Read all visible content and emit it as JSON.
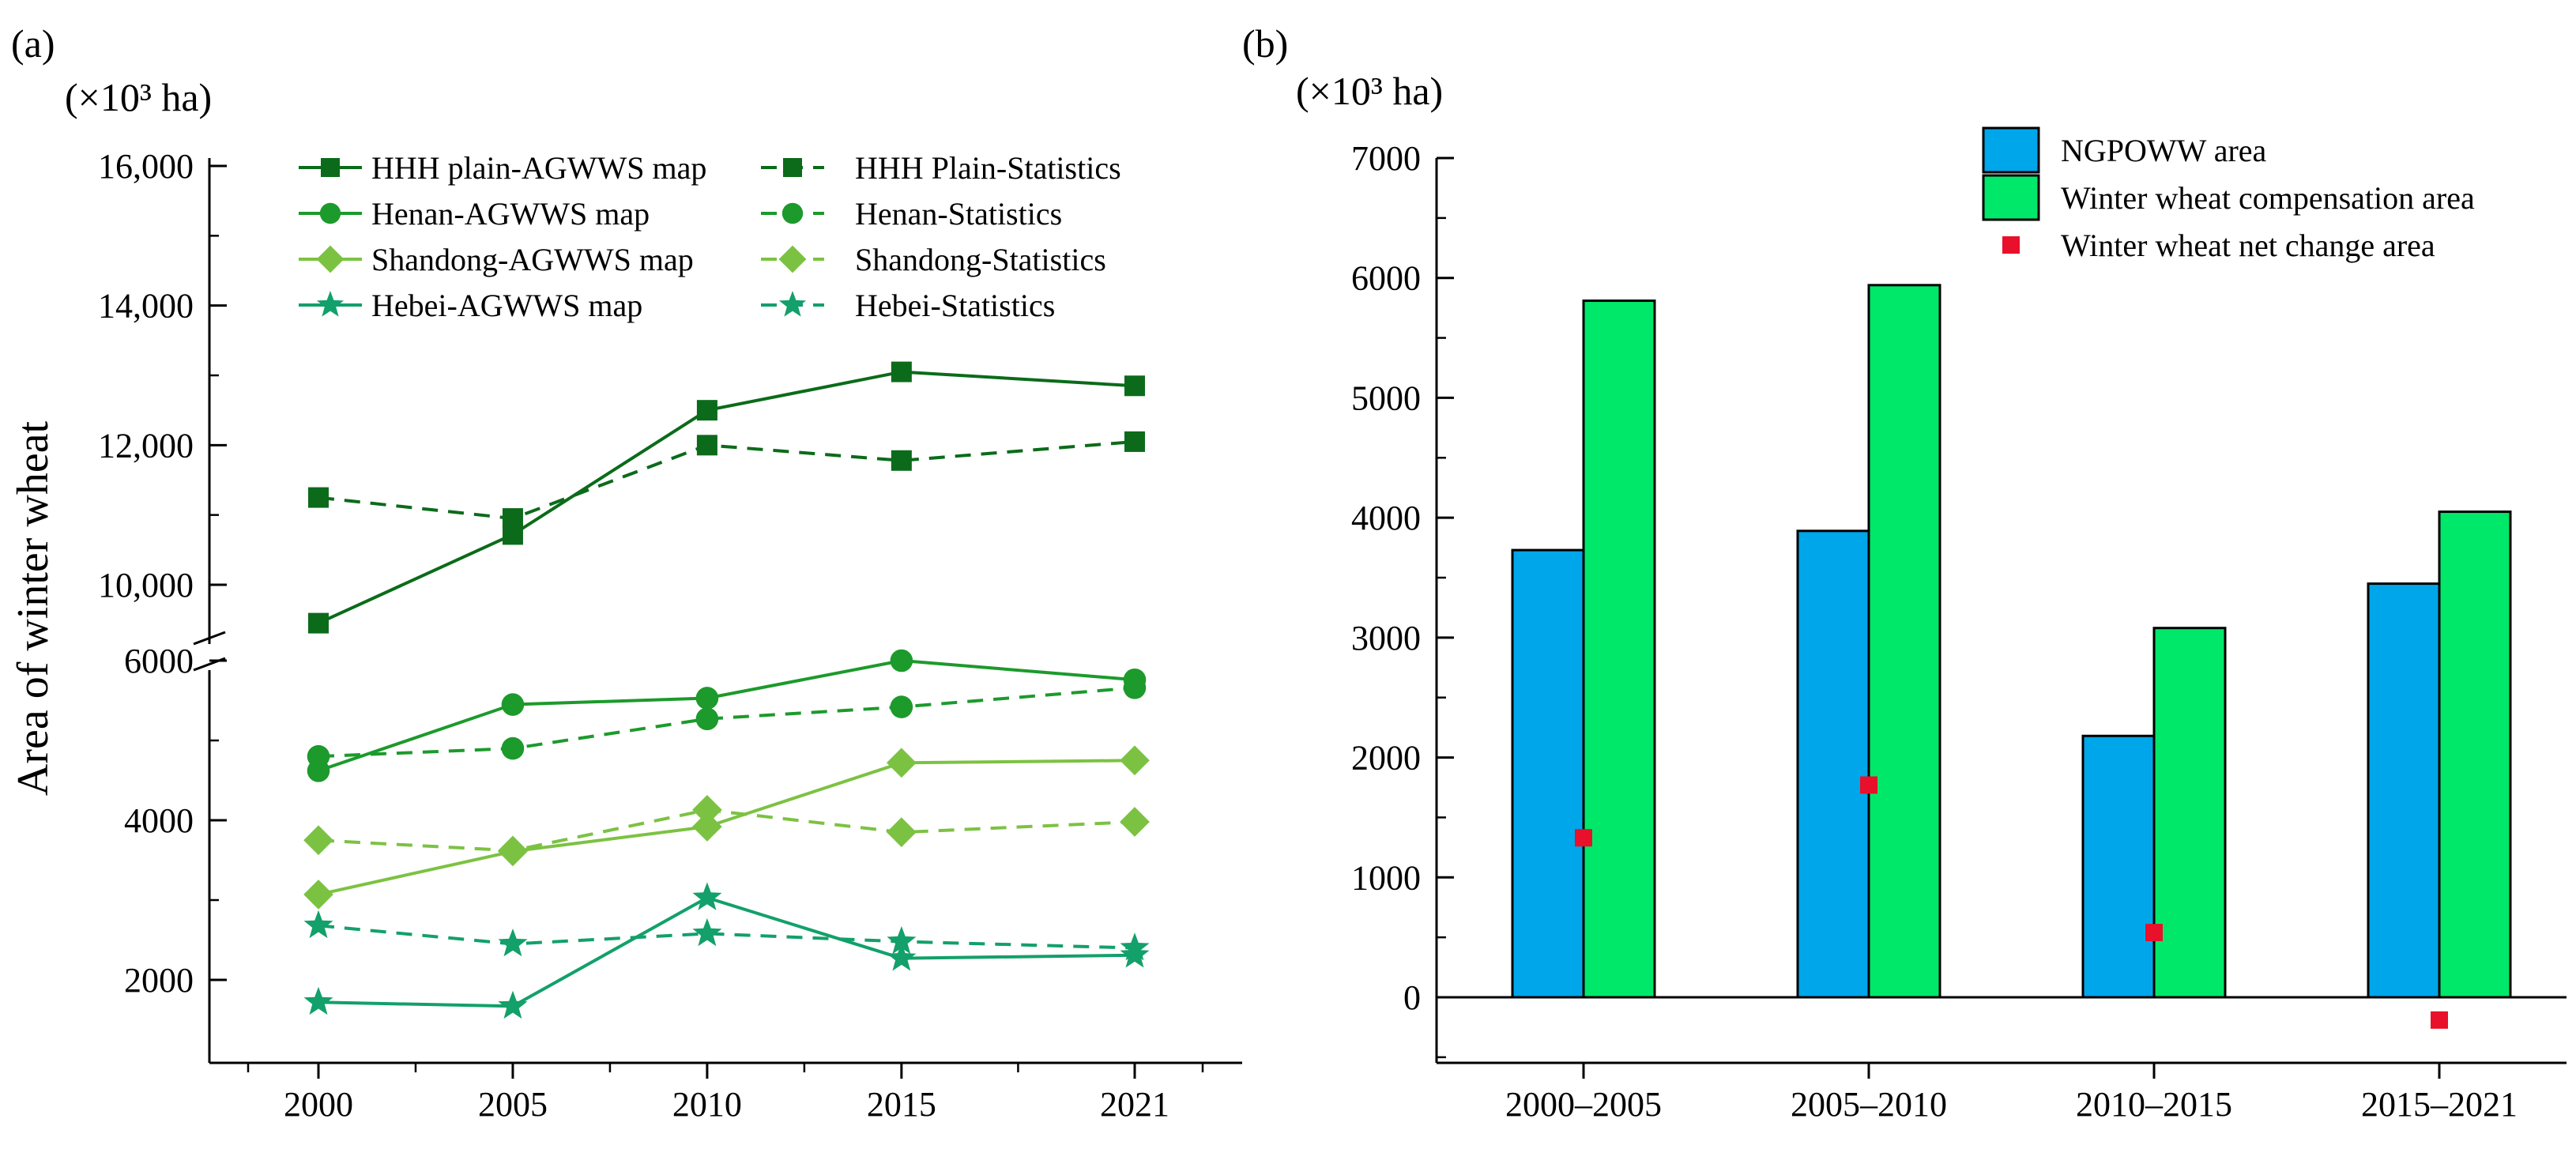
{
  "chart_data": [
    {
      "panel_label": "(a)",
      "type": "line",
      "unit_label": "(×10³ ha)",
      "ylabel": "Area of winter wheat",
      "xlabel": "",
      "x": [
        2000,
        2005,
        2010,
        2015,
        2021
      ],
      "x_tick_labels": [
        "2000",
        "2005",
        "2010",
        "2015",
        "2021"
      ],
      "y_axis_break": true,
      "ylim_lower": [
        1000,
        6100
      ],
      "ylim_upper": [
        9300,
        16000
      ],
      "y_tick_labels": [
        "2000",
        "4000",
        "6000",
        "10,000",
        "12,000",
        "14,000",
        "16,000"
      ],
      "legend_position": "top",
      "series": [
        {
          "name": "HHH plain-AGWWS map",
          "values": [
            9450,
            10720,
            12500,
            13050,
            12850
          ],
          "color": "#0b6b1a",
          "marker": "square",
          "dash": false
        },
        {
          "name": "HHH Plain-Statistics",
          "values": [
            11250,
            10950,
            12000,
            11780,
            12050
          ],
          "color": "#0b6b1a",
          "marker": "square",
          "dash": true
        },
        {
          "name": "Henan-AGWWS map",
          "values": [
            4620,
            5450,
            5530,
            6000,
            5760
          ],
          "color": "#1c9a2b",
          "marker": "circle",
          "dash": false
        },
        {
          "name": "Henan-Statistics",
          "values": [
            4800,
            4900,
            5270,
            5420,
            5660
          ],
          "color": "#1c9a2b",
          "marker": "circle",
          "dash": true
        },
        {
          "name": "Shandong-AGWWS map",
          "values": [
            3070,
            3610,
            3920,
            4720,
            4750
          ],
          "color": "#7cc242",
          "marker": "diamond",
          "dash": false
        },
        {
          "name": "Shandong-Statistics",
          "values": [
            3750,
            3620,
            4130,
            3850,
            3980
          ],
          "color": "#7cc242",
          "marker": "diamond",
          "dash": true
        },
        {
          "name": "Hebei-AGWWS map",
          "values": [
            1720,
            1670,
            3030,
            2270,
            2310
          ],
          "color": "#13a06a",
          "marker": "star",
          "dash": false
        },
        {
          "name": "Hebei-Statistics",
          "values": [
            2680,
            2450,
            2580,
            2480,
            2400
          ],
          "color": "#13a06a",
          "marker": "star",
          "dash": true
        }
      ]
    },
    {
      "panel_label": "(b)",
      "type": "bar",
      "unit_label": "(×10³ ha)",
      "ylabel": "",
      "xlabel": "",
      "categories": [
        "2000–2005",
        "2005–2010",
        "2010–2015",
        "2015–2021"
      ],
      "ylim": [
        -500,
        7000
      ],
      "y_tick_labels": [
        "0",
        "1000",
        "2000",
        "3000",
        "4000",
        "5000",
        "6000",
        "7000"
      ],
      "legend_position": "top-right",
      "series": [
        {
          "name": "NGPOWW area",
          "type": "bar",
          "values": [
            3730,
            3890,
            2180,
            3450
          ],
          "color": "#00a6ea"
        },
        {
          "name": "Winter wheat compensation area",
          "type": "bar",
          "values": [
            5810,
            5940,
            3080,
            4050
          ],
          "color": "#00e86a"
        },
        {
          "name": "Winter wheat net change area",
          "type": "scatter",
          "values": [
            1330,
            1770,
            540,
            -190
          ],
          "color": "#e8102a",
          "marker": "square"
        }
      ]
    }
  ]
}
